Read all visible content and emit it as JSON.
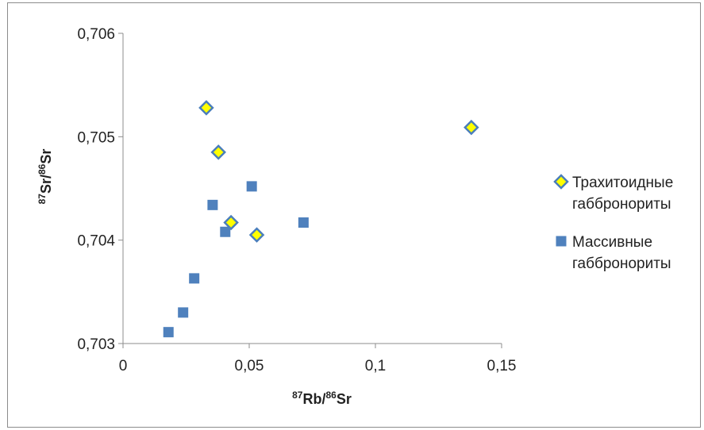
{
  "chart_data": {
    "type": "scatter",
    "xlabel": {
      "pre": "87",
      "a": "Rb/",
      "mid": "86",
      "b": "Sr"
    },
    "ylabel": {
      "pre": "87",
      "a": "Sr/",
      "mid": "86",
      "b": "Sr"
    },
    "xlim": [
      0,
      0.15
    ],
    "ylim": [
      0.703,
      0.706
    ],
    "x_ticks": [
      0,
      0.05,
      0.1,
      0.15
    ],
    "x_tick_labels": [
      "0",
      "0,05",
      "0,1",
      "0,15"
    ],
    "y_ticks": [
      0.703,
      0.704,
      0.705,
      0.706
    ],
    "y_tick_labels": [
      "0,703",
      "0,704",
      "0,705",
      "0,706"
    ],
    "grid": false,
    "legend_position": "right",
    "series": [
      {
        "name_lines": [
          "Трахитоидные",
          "габбронориты"
        ],
        "marker": "diamond",
        "color": "#ffff00",
        "edge_color": "#4a7ebb",
        "points": [
          [
            0.033,
            0.70528
          ],
          [
            0.0378,
            0.70485
          ],
          [
            0.0428,
            0.70417
          ],
          [
            0.053,
            0.70405
          ],
          [
            0.138,
            0.70509
          ]
        ]
      },
      {
        "name_lines": [
          "Массивные",
          "габбронориты"
        ],
        "marker": "square",
        "color": "#4f81bd",
        "edge_color": "#4f81bd",
        "points": [
          [
            0.018,
            0.70311
          ],
          [
            0.0238,
            0.7033
          ],
          [
            0.0282,
            0.70363
          ],
          [
            0.0355,
            0.70434
          ],
          [
            0.0405,
            0.70408
          ],
          [
            0.051,
            0.70452
          ],
          [
            0.0715,
            0.70417
          ]
        ]
      }
    ]
  }
}
